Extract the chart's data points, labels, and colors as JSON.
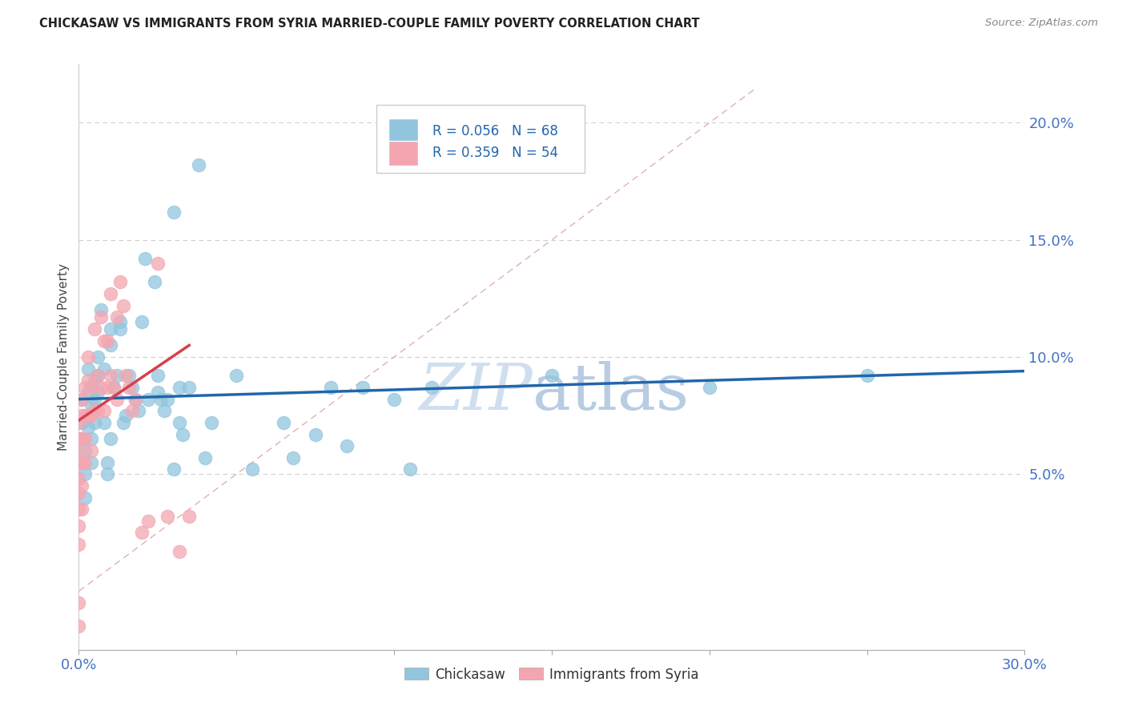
{
  "title": "CHICKASAW VS IMMIGRANTS FROM SYRIA MARRIED-COUPLE FAMILY POVERTY CORRELATION CHART",
  "source": "Source: ZipAtlas.com",
  "ylabel": "Married-Couple Family Poverty",
  "xlim": [
    0.0,
    0.3
  ],
  "ylim": [
    -0.025,
    0.225
  ],
  "blue_R": 0.056,
  "blue_N": 68,
  "pink_R": 0.359,
  "pink_N": 54,
  "blue_color": "#92c5de",
  "pink_color": "#f4a6b0",
  "blue_line_color": "#2166ac",
  "pink_line_color": "#d6404e",
  "diag_color": "#e0b0b8",
  "tick_color": "#4472c4",
  "watermark_color": "#d0dff0",
  "blue_points_x": [
    0.001,
    0.001,
    0.001,
    0.002,
    0.002,
    0.003,
    0.003,
    0.004,
    0.004,
    0.005,
    0.005,
    0.006,
    0.006,
    0.007,
    0.008,
    0.008,
    0.009,
    0.009,
    0.01,
    0.01,
    0.01,
    0.011,
    0.012,
    0.013,
    0.013,
    0.014,
    0.015,
    0.016,
    0.017,
    0.018,
    0.019,
    0.02,
    0.021,
    0.022,
    0.024,
    0.025,
    0.026,
    0.027,
    0.028,
    0.03,
    0.032,
    0.033,
    0.035,
    0.038,
    0.04,
    0.042,
    0.05,
    0.055,
    0.065,
    0.068,
    0.075,
    0.08,
    0.085,
    0.09,
    0.1,
    0.105,
    0.112,
    0.15,
    0.2,
    0.25,
    0.002,
    0.003,
    0.004,
    0.005,
    0.006,
    0.025,
    0.03,
    0.032
  ],
  "blue_points_y": [
    0.082,
    0.072,
    0.065,
    0.06,
    0.05,
    0.095,
    0.085,
    0.065,
    0.055,
    0.082,
    0.072,
    0.092,
    0.085,
    0.12,
    0.095,
    0.072,
    0.055,
    0.05,
    0.112,
    0.105,
    0.065,
    0.087,
    0.092,
    0.115,
    0.112,
    0.072,
    0.075,
    0.092,
    0.087,
    0.082,
    0.077,
    0.115,
    0.142,
    0.082,
    0.132,
    0.092,
    0.082,
    0.077,
    0.082,
    0.162,
    0.087,
    0.067,
    0.087,
    0.182,
    0.057,
    0.072,
    0.092,
    0.052,
    0.072,
    0.057,
    0.067,
    0.087,
    0.062,
    0.087,
    0.082,
    0.052,
    0.087,
    0.092,
    0.087,
    0.092,
    0.04,
    0.07,
    0.08,
    0.09,
    0.1,
    0.085,
    0.052,
    0.072
  ],
  "pink_points_x": [
    0.0,
    0.0,
    0.0,
    0.0,
    0.0,
    0.0,
    0.0,
    0.0,
    0.0,
    0.0,
    0.0,
    0.001,
    0.001,
    0.001,
    0.001,
    0.001,
    0.001,
    0.002,
    0.002,
    0.002,
    0.002,
    0.003,
    0.003,
    0.003,
    0.004,
    0.004,
    0.004,
    0.005,
    0.005,
    0.006,
    0.006,
    0.007,
    0.007,
    0.008,
    0.008,
    0.009,
    0.009,
    0.01,
    0.01,
    0.011,
    0.012,
    0.012,
    0.013,
    0.014,
    0.015,
    0.016,
    0.017,
    0.018,
    0.02,
    0.022,
    0.025,
    0.028,
    0.032,
    0.035
  ],
  "pink_points_y": [
    0.072,
    0.065,
    0.06,
    0.055,
    0.048,
    0.042,
    0.035,
    0.028,
    0.02,
    -0.005,
    -0.015,
    0.082,
    0.075,
    0.065,
    0.055,
    0.045,
    0.035,
    0.087,
    0.075,
    0.065,
    0.055,
    0.1,
    0.09,
    0.075,
    0.087,
    0.075,
    0.06,
    0.112,
    0.077,
    0.092,
    0.077,
    0.117,
    0.087,
    0.107,
    0.077,
    0.107,
    0.087,
    0.127,
    0.092,
    0.087,
    0.117,
    0.082,
    0.132,
    0.122,
    0.092,
    0.087,
    0.077,
    0.082,
    0.025,
    0.03,
    0.14,
    0.032,
    0.017,
    0.032
  ]
}
